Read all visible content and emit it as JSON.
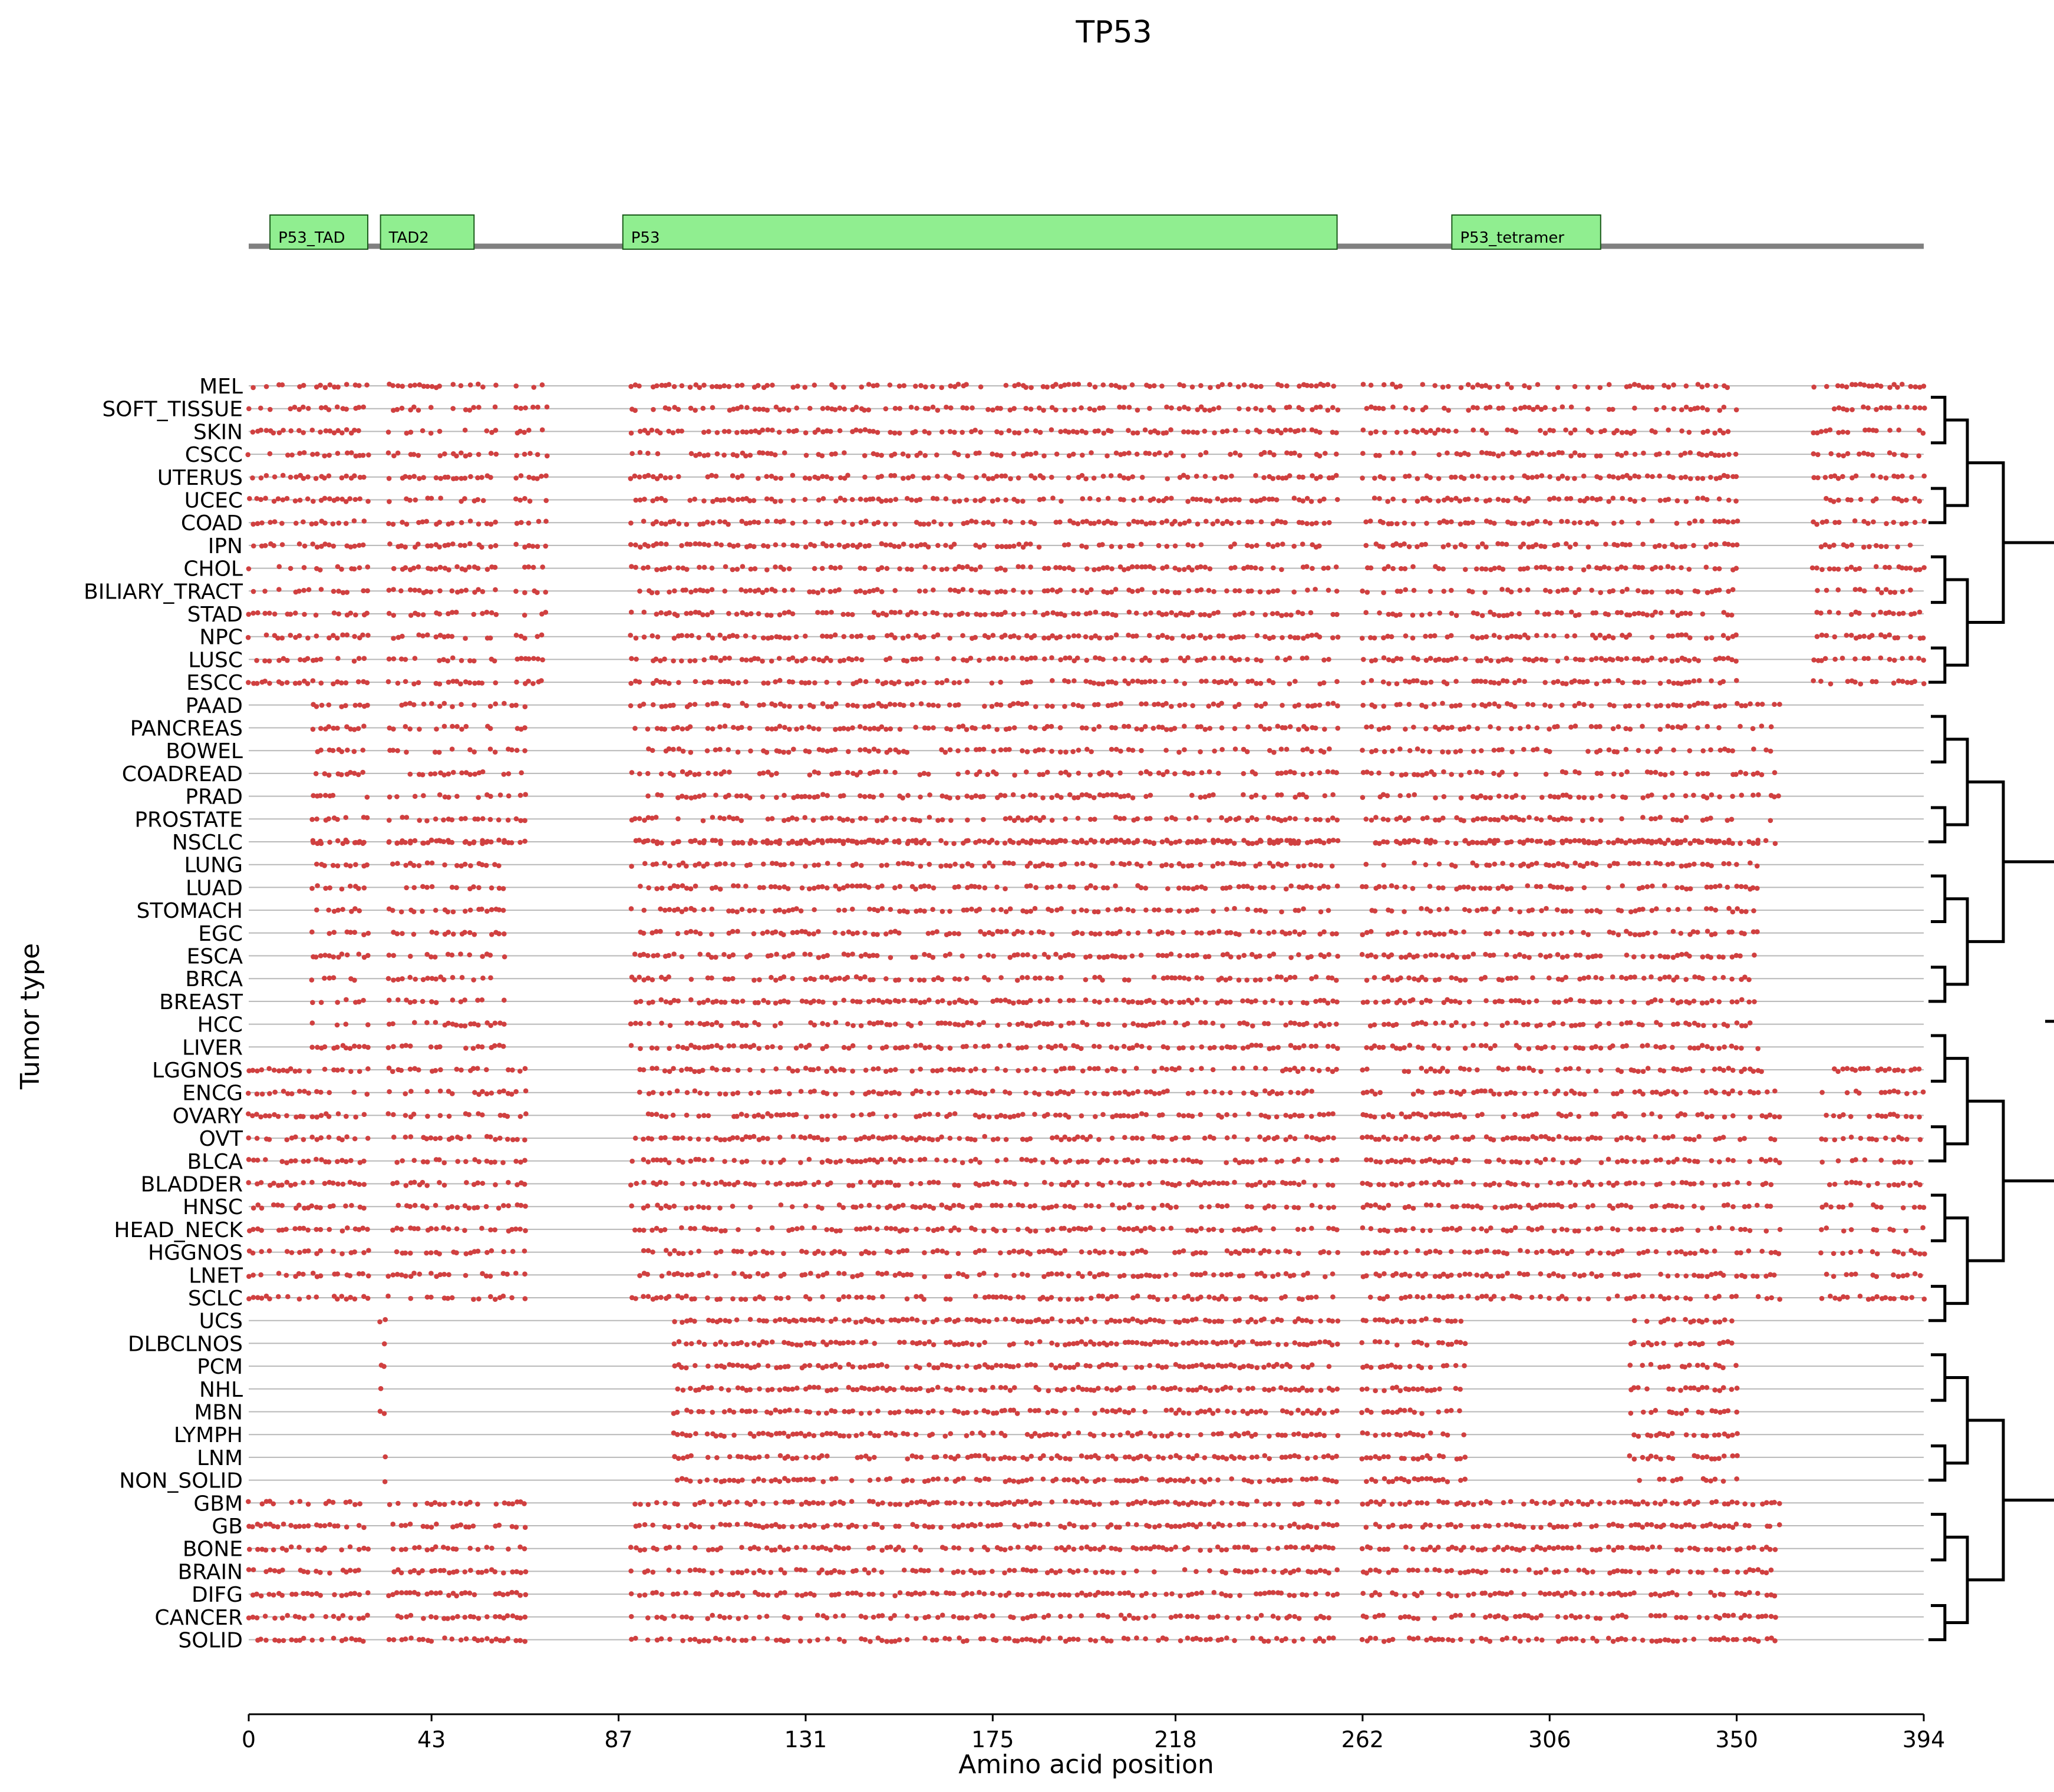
{
  "chart_data": {
    "type": "scatter",
    "title": "TP53",
    "xlabel": "Amino acid position",
    "ylabel": "Tumor type",
    "xlim": [
      0,
      394
    ],
    "xticks": [
      0,
      43,
      87,
      131,
      175,
      218,
      262,
      306,
      350,
      394
    ],
    "grid": false,
    "legend": "none",
    "protein": {
      "name": "TP53",
      "length": 394,
      "backbone_color": "#808080",
      "domain_color": "#90ee90",
      "domains": [
        {
          "name": "P53_TAD",
          "start": 5,
          "end": 28
        },
        {
          "name": "TAD2",
          "start": 31,
          "end": 53
        },
        {
          "name": "P53",
          "start": 88,
          "end": 256
        },
        {
          "name": "P53_tetramer",
          "start": 283,
          "end": 318
        }
      ]
    },
    "marker_color": "#d04040",
    "row_line_color": "#b8b8b8",
    "tumor_types": [
      "MEL",
      "SOFT_TISSUE",
      "SKIN",
      "CSCC",
      "UTERUS",
      "UCEC",
      "COAD",
      "IPN",
      "CHOL",
      "BILIARY_TRACT",
      "STAD",
      "NPC",
      "LUSC",
      "ESCC",
      "PAAD",
      "PANCREAS",
      "BOWEL",
      "COADREAD",
      "PRAD",
      "PROSTATE",
      "NSCLC",
      "LUNG",
      "LUAD",
      "STOMACH",
      "EGC",
      "ESCA",
      "BRCA",
      "BREAST",
      "HCC",
      "LIVER",
      "LGGNOS",
      "ENCG",
      "OVARY",
      "OVT",
      "BLCA",
      "BLADDER",
      "HNSC",
      "HEAD_NECK",
      "HGGNOS",
      "LNET",
      "SCLC",
      "UCS",
      "DLBCLNOS",
      "PCM",
      "NHL",
      "MBN",
      "LYMPH",
      "LNM",
      "NON_SOLID",
      "GBM",
      "GB",
      "BONE",
      "BRAIN",
      "DIFG",
      "CANCER",
      "SOLID"
    ],
    "mutation_ranges": [
      {
        "from": 0,
        "to": 13,
        "segments": [
          [
            0,
            28
          ],
          [
            33,
            58
          ],
          [
            63,
            70
          ],
          [
            90,
            256
          ],
          [
            262,
            350
          ],
          [
            368,
            394
          ]
        ],
        "density": 0.62
      },
      {
        "from": 14,
        "to": 20,
        "segments": [
          [
            15,
            28
          ],
          [
            33,
            65
          ],
          [
            90,
            256
          ],
          [
            262,
            318
          ],
          [
            320,
            360
          ]
        ],
        "density": 0.55
      },
      {
        "from": 20,
        "to": 29,
        "segments": [
          [
            15,
            28
          ],
          [
            33,
            60
          ],
          [
            90,
            256
          ],
          [
            262,
            318
          ],
          [
            320,
            355
          ]
        ],
        "density": 0.6
      },
      {
        "from": 30,
        "to": 40,
        "segments": [
          [
            0,
            28
          ],
          [
            33,
            65
          ],
          [
            90,
            256
          ],
          [
            262,
            318
          ],
          [
            320,
            360
          ],
          [
            370,
            394
          ]
        ],
        "density": 0.6
      },
      {
        "from": 41,
        "to": 48,
        "segments": [
          [
            31,
            32
          ],
          [
            100,
            256
          ],
          [
            262,
            286
          ],
          [
            325,
            350
          ]
        ],
        "density": 0.7
      },
      {
        "from": 49,
        "to": 55,
        "segments": [
          [
            0,
            28
          ],
          [
            33,
            65
          ],
          [
            90,
            256
          ],
          [
            262,
            318
          ],
          [
            320,
            360
          ]
        ],
        "density": 0.66
      }
    ]
  }
}
